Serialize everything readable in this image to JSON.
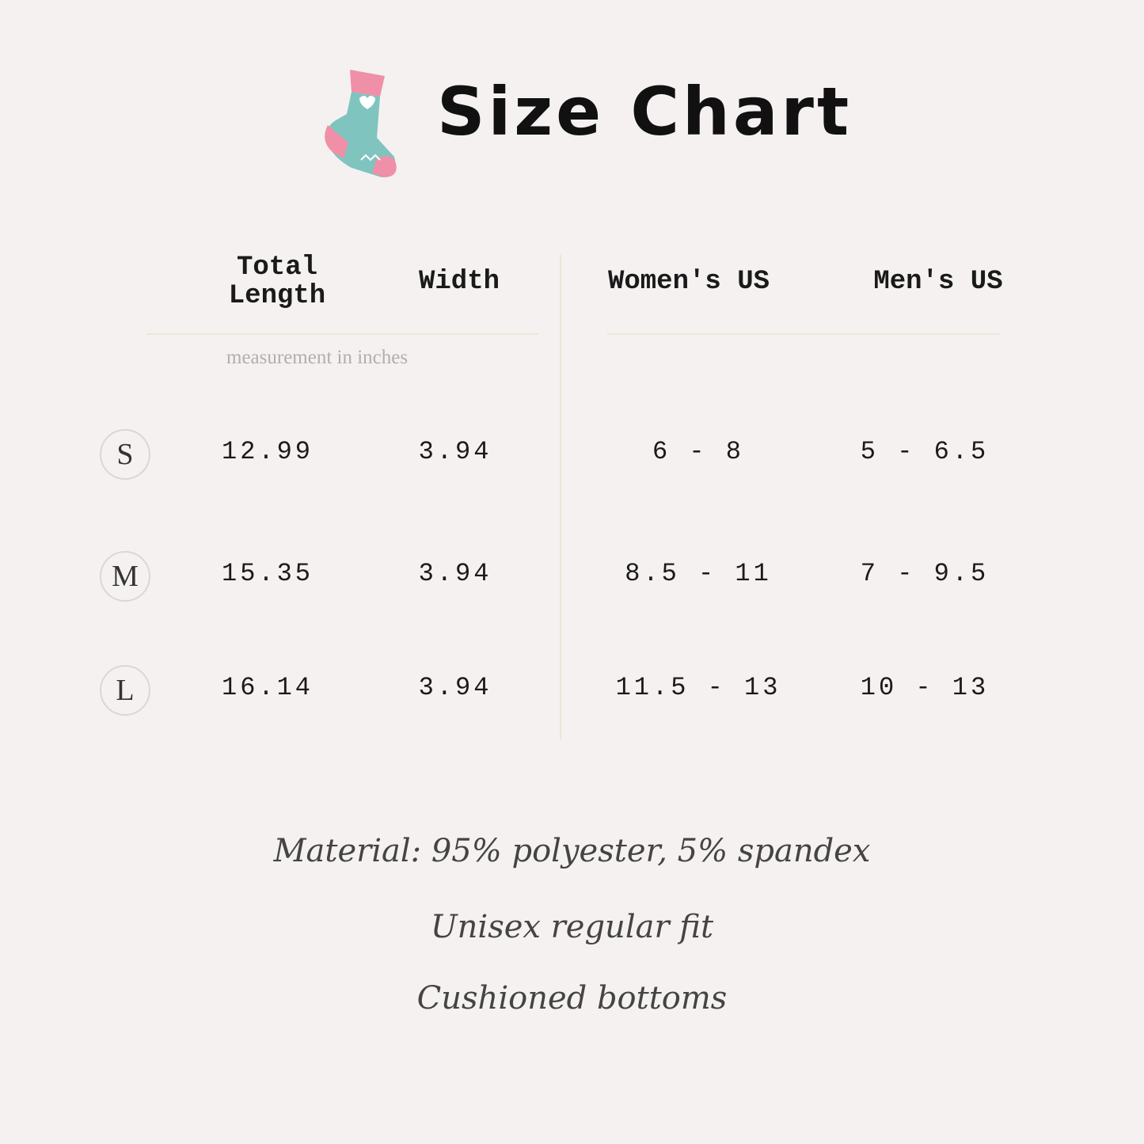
{
  "title": "Size Chart",
  "icon": "sock-icon",
  "colors": {
    "background": "#f5f1f0",
    "sock_body": "#7fc4bf",
    "sock_accent": "#f08fa8"
  },
  "headers": [
    "Total Length",
    "Width",
    "Women's US",
    "Men's US"
  ],
  "header_total_length": [
    "Total",
    "Length"
  ],
  "note": "measurement in inches",
  "rows": [
    {
      "size": "S",
      "length": "12.99",
      "width": "3.94",
      "womens": "6 - 8",
      "mens": "5 - 6.5"
    },
    {
      "size": "M",
      "length": "15.35",
      "width": "3.94",
      "womens": "8.5 - 11",
      "mens": "7 - 9.5"
    },
    {
      "size": "L",
      "length": "16.14",
      "width": "3.94",
      "womens": "11.5 - 13",
      "mens": "10 - 13"
    }
  ],
  "footer": [
    "Material: 95% polyester, 5% spandex",
    "Unisex regular fit",
    "Cushioned bottoms"
  ]
}
